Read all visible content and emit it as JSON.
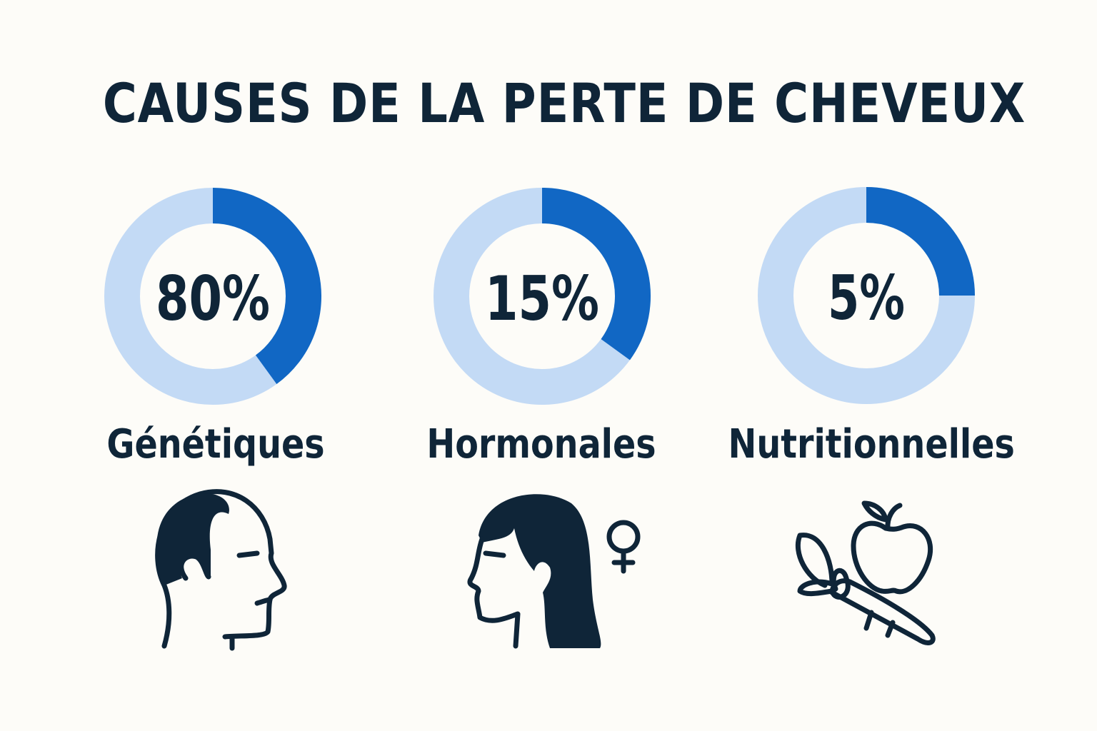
{
  "chart_data": {
    "type": "pie",
    "title": "CAUSES DE LA PERTE DE CHEVEUX",
    "items": [
      {
        "category": "Génétiques",
        "value": 80,
        "value_label": "80%",
        "filled_fraction": 0.4,
        "icon": "bald-head-icon"
      },
      {
        "category": "Hormonales",
        "value": 15,
        "value_label": "15%",
        "filled_fraction": 0.35,
        "icon": "woman-female-symbol-icon"
      },
      {
        "category": "Nutritionnelles",
        "value": 5,
        "value_label": "5%",
        "filled_fraction": 0.25,
        "icon": "apple-carrot-icon"
      }
    ],
    "colors": {
      "filled": "#1167c4",
      "track": "#c3daf5",
      "text": "#0f2538",
      "background": "#fdfcf8"
    }
  }
}
